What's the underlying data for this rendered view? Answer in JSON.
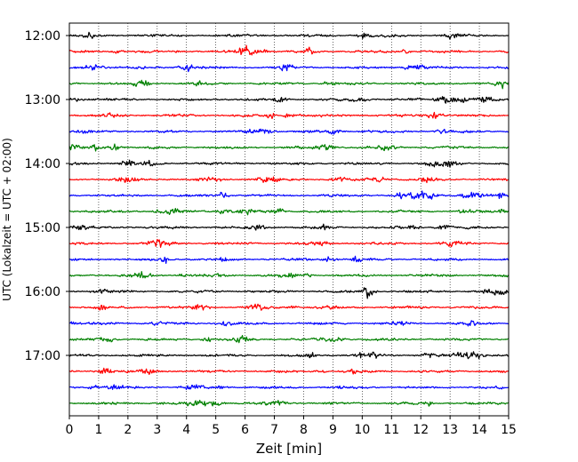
{
  "chart_data": {
    "type": "line",
    "subtype": "helicorder",
    "xlabel": "Zeit  [min]",
    "ylabel": "UTC (Lokalzeit = UTC + 02:00)",
    "xlim": [
      0,
      15
    ],
    "x_ticks": [
      0,
      1,
      2,
      3,
      4,
      5,
      6,
      7,
      8,
      9,
      10,
      11,
      12,
      13,
      14,
      15
    ],
    "y_ticks": [
      "12:00",
      "13:00",
      "14:00",
      "15:00",
      "16:00",
      "17:00"
    ],
    "trace_interval_minutes": 15,
    "trace_start": "12:00",
    "trace_count": 24,
    "trace_colors": [
      "#000000",
      "#ff0000",
      "#0000ff",
      "#008000"
    ],
    "grid": "vertical dotted"
  }
}
